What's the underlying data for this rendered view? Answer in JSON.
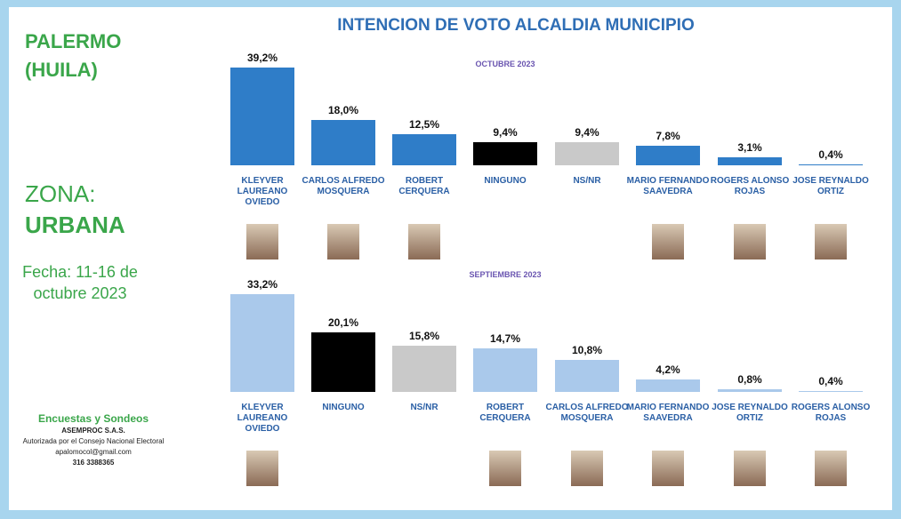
{
  "title": "INTENCION DE VOTO ALCALDIA MUNICIPIO",
  "sidebar": {
    "place": "PALERMO",
    "region": "(HUILA)",
    "zone_label": "ZONA:",
    "zone": "URBANA",
    "date": "Fecha: 11-16 de octubre 2023",
    "footer": {
      "heading": "Encuestas y Sondeos",
      "company": "ASEMPROC S.A.S.",
      "authorization": "Autorizada por el Consejo Nacional Electoral",
      "email": "apalomocol@gmail.com",
      "phone": "316 3388365"
    }
  },
  "chart_data": [
    {
      "type": "bar",
      "subtitle": "OCTUBRE 2023",
      "categories": [
        "KLEYVER LAUREANO OVIEDO",
        "CARLOS ALFREDO MOSQUERA",
        "ROBERT CERQUERA",
        "NINGUNO",
        "NS/NR",
        "MARIO FERNANDO SAAVEDRA",
        "ROGERS ALONSO ROJAS",
        "JOSE REYNALDO ORTIZ"
      ],
      "values": [
        39.2,
        18.0,
        12.5,
        9.4,
        9.4,
        7.8,
        3.1,
        0.4
      ],
      "value_labels": [
        "39,2%",
        "18,0%",
        "12,5%",
        "9,4%",
        "9,4%",
        "7,8%",
        "3,1%",
        "0,4%"
      ],
      "colors": [
        "#2f7dc8",
        "#2f7dc8",
        "#2f7dc8",
        "#000000",
        "#c9c9c9",
        "#2f7dc8",
        "#2f7dc8",
        "#2f7dc8"
      ]
    },
    {
      "type": "bar",
      "subtitle": "SEPTIEMBRE 2023",
      "categories": [
        "KLEYVER LAUREANO OVIEDO",
        "NINGUNO",
        "NS/NR",
        "ROBERT CERQUERA",
        "CARLOS ALFREDO MOSQUERA",
        "MARIO FERNANDO SAAVEDRA",
        "JOSE REYNALDO ORTIZ",
        "ROGERS ALONSO ROJAS"
      ],
      "values": [
        33.2,
        20.1,
        15.8,
        14.7,
        10.8,
        4.2,
        0.8,
        0.4
      ],
      "value_labels": [
        "33,2%",
        "20,1%",
        "15,8%",
        "14,7%",
        "10,8%",
        "4,2%",
        "0,8%",
        "0,4%"
      ],
      "colors": [
        "#aac9eb",
        "#000000",
        "#c9c9c9",
        "#aac9eb",
        "#aac9eb",
        "#aac9eb",
        "#aac9eb",
        "#aac9eb"
      ]
    }
  ]
}
